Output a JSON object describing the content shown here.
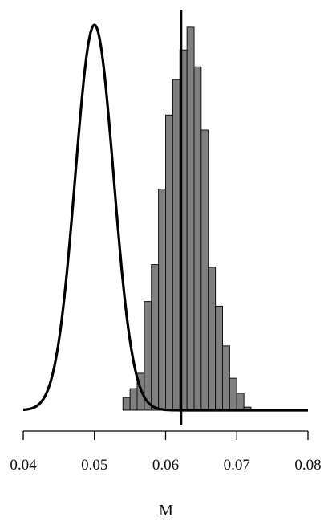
{
  "chart_data": {
    "type": "bar",
    "title": "",
    "xlabel": "M",
    "ylabel": "",
    "xlim": [
      0.04,
      0.08
    ],
    "xticks": [
      0.04,
      0.05,
      0.06,
      0.07,
      0.08
    ],
    "xtick_labels": [
      "0.04",
      "0.05",
      "0.06",
      "0.07",
      "0.08"
    ],
    "grid": false,
    "legend": "none",
    "colors": {
      "bars": "#7f7f7f",
      "bar_edge": "#111111",
      "curve": "#000000",
      "line": "#000000"
    },
    "histogram": {
      "bin_width": 0.001,
      "bins": [
        {
          "x0": 0.054,
          "density": 0.033
        },
        {
          "x0": 0.055,
          "density": 0.056
        },
        {
          "x0": 0.056,
          "density": 0.096
        },
        {
          "x0": 0.057,
          "density": 0.282
        },
        {
          "x0": 0.058,
          "density": 0.378
        },
        {
          "x0": 0.059,
          "density": 0.574
        },
        {
          "x0": 0.06,
          "density": 0.766
        },
        {
          "x0": 0.061,
          "density": 0.858
        },
        {
          "x0": 0.062,
          "density": 0.935
        },
        {
          "x0": 0.063,
          "density": 0.994
        },
        {
          "x0": 0.064,
          "density": 0.891
        },
        {
          "x0": 0.065,
          "density": 0.727
        },
        {
          "x0": 0.066,
          "density": 0.371
        },
        {
          "x0": 0.067,
          "density": 0.27
        },
        {
          "x0": 0.068,
          "density": 0.167
        },
        {
          "x0": 0.069,
          "density": 0.083
        },
        {
          "x0": 0.07,
          "density": 0.044
        },
        {
          "x0": 0.071,
          "density": 0.008
        }
      ]
    },
    "reference_curve": {
      "shape": "normal",
      "peak_x": 0.05,
      "sd": 0.0027,
      "peak_density": 1.0
    },
    "vertical_line": {
      "x": 0.0622
    }
  }
}
